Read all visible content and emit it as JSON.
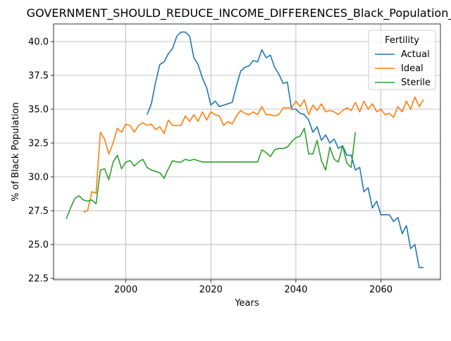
{
  "chart_data": {
    "type": "line",
    "title": "GOVERNMENT_SHOULD_REDUCE_INCOME_DIFFERENCES_Black_Population_Sc",
    "xlabel": "Years",
    "ylabel": "% of Black Population",
    "xlim": [
      1983,
      2074
    ],
    "ylim": [
      22.4,
      41.3
    ],
    "xticks": [
      2000,
      2020,
      2040,
      2060
    ],
    "yticks": [
      22.5,
      25.0,
      27.5,
      30.0,
      32.5,
      35.0,
      37.5,
      40.0
    ],
    "ytick_labels": [
      "22.5",
      "25.0",
      "27.5",
      "30.0",
      "32.5",
      "35.0",
      "37.5",
      "40.0"
    ],
    "grid": true,
    "legend": {
      "title": "Fertility",
      "position": "top-right"
    },
    "series": [
      {
        "name": "Actual",
        "color": "#1f77b4",
        "x": [
          2005,
          2006,
          2007,
          2008,
          2009,
          2010,
          2011,
          2012,
          2013,
          2014,
          2015,
          2016,
          2017,
          2018,
          2019,
          2020,
          2021,
          2022,
          2023,
          2024,
          2025,
          2026,
          2027,
          2028,
          2029,
          2030,
          2031,
          2032,
          2033,
          2034,
          2035,
          2036,
          2037,
          2038,
          2039,
          2040,
          2041,
          2042,
          2043,
          2044,
          2045,
          2046,
          2047,
          2048,
          2049,
          2050,
          2051,
          2052,
          2053,
          2054,
          2055,
          2056,
          2057,
          2058,
          2059,
          2060,
          2061,
          2062,
          2063,
          2064,
          2065,
          2066,
          2067,
          2068,
          2069,
          2070
        ],
        "y": [
          34.6,
          35.4,
          37.0,
          38.3,
          38.5,
          39.1,
          39.5,
          40.4,
          40.7,
          40.7,
          40.4,
          38.8,
          38.3,
          37.3,
          36.6,
          35.3,
          35.6,
          35.2,
          35.3,
          35.4,
          35.5,
          36.7,
          37.8,
          38.1,
          38.2,
          38.6,
          38.5,
          39.4,
          38.8,
          39.0,
          38.1,
          37.6,
          36.9,
          37.0,
          35.0,
          35.0,
          34.7,
          34.6,
          34.2,
          33.3,
          33.7,
          32.7,
          33.1,
          32.5,
          32.8,
          32.1,
          32.3,
          31.6,
          31.6,
          30.5,
          30.7,
          28.9,
          29.2,
          27.7,
          28.2,
          27.2,
          27.2,
          27.2,
          26.7,
          27.0,
          25.8,
          26.4,
          24.7,
          25.0,
          23.3,
          23.3
        ]
      },
      {
        "name": "Ideal",
        "color": "#ff7f0e",
        "x": [
          1990,
          1991,
          1992,
          1993,
          1994,
          1995,
          1996,
          1997,
          1998,
          1999,
          2000,
          2001,
          2002,
          2003,
          2004,
          2005,
          2006,
          2007,
          2008,
          2009,
          2010,
          2011,
          2012,
          2013,
          2014,
          2015,
          2016,
          2017,
          2018,
          2019,
          2020,
          2021,
          2022,
          2023,
          2024,
          2025,
          2026,
          2027,
          2028,
          2029,
          2030,
          2031,
          2032,
          2033,
          2034,
          2035,
          2036,
          2037,
          2038,
          2039,
          2040,
          2041,
          2042,
          2043,
          2044,
          2045,
          2046,
          2047,
          2048,
          2049,
          2050,
          2051,
          2052,
          2053,
          2054,
          2055,
          2056,
          2057,
          2058,
          2059,
          2060,
          2061,
          2062,
          2063,
          2064,
          2065,
          2066,
          2067,
          2068,
          2069,
          2070
        ],
        "y": [
          27.4,
          27.5,
          28.9,
          28.8,
          33.3,
          32.8,
          31.7,
          32.5,
          33.6,
          33.3,
          33.9,
          33.8,
          33.3,
          33.8,
          34.0,
          33.8,
          33.9,
          33.5,
          33.7,
          33.2,
          34.2,
          33.8,
          33.8,
          33.8,
          34.5,
          34.1,
          34.6,
          34.1,
          34.8,
          34.2,
          34.8,
          34.6,
          34.5,
          33.8,
          34.1,
          33.9,
          34.5,
          34.9,
          34.7,
          34.6,
          34.8,
          34.6,
          35.2,
          34.6,
          34.6,
          34.5,
          34.6,
          35.1,
          35.1,
          35.1,
          35.6,
          35.2,
          35.7,
          34.6,
          35.3,
          34.9,
          35.4,
          34.8,
          34.9,
          34.8,
          34.6,
          34.9,
          35.1,
          34.9,
          35.5,
          34.8,
          35.6,
          35.0,
          35.4,
          34.8,
          35.0,
          34.6,
          34.7,
          34.4,
          35.2,
          34.8,
          35.6,
          35.0,
          35.9,
          35.2,
          35.7
        ]
      },
      {
        "name": "Sterile",
        "color": "#2ca02c",
        "x": [
          1986,
          1987,
          1988,
          1989,
          1990,
          1991,
          1992,
          1993,
          1994,
          1995,
          1996,
          1997,
          1998,
          1999,
          2000,
          2001,
          2002,
          2003,
          2004,
          2005,
          2006,
          2007,
          2008,
          2009,
          2010,
          2011,
          2012,
          2013,
          2014,
          2015,
          2016,
          2017,
          2018,
          2019,
          2020,
          2021,
          2022,
          2023,
          2024,
          2025,
          2026,
          2027,
          2028,
          2029,
          2030,
          2031,
          2032,
          2033,
          2034,
          2035,
          2036,
          2037,
          2038,
          2039,
          2040,
          2041,
          2042,
          2043,
          2044,
          2045,
          2046,
          2047,
          2048,
          2049,
          2050,
          2051,
          2052,
          2053,
          2054
        ],
        "y": [
          26.9,
          27.7,
          28.4,
          28.6,
          28.3,
          28.2,
          28.3,
          28.0,
          30.5,
          30.6,
          29.8,
          31.1,
          31.6,
          30.6,
          31.1,
          31.2,
          30.8,
          31.1,
          31.3,
          30.7,
          30.5,
          30.4,
          30.3,
          29.9,
          30.6,
          31.2,
          31.1,
          31.1,
          31.3,
          31.2,
          31.3,
          31.2,
          31.1,
          31.1,
          31.1,
          31.1,
          31.1,
          31.1,
          31.1,
          31.1,
          31.1,
          31.1,
          31.1,
          31.1,
          31.1,
          31.1,
          32.0,
          31.8,
          31.5,
          32.0,
          32.1,
          32.1,
          32.2,
          32.6,
          32.9,
          33.0,
          33.6,
          31.7,
          31.7,
          32.7,
          31.2,
          30.5,
          32.2,
          31.3,
          31.1,
          32.3,
          31.0,
          30.7,
          33.3
        ]
      }
    ]
  }
}
